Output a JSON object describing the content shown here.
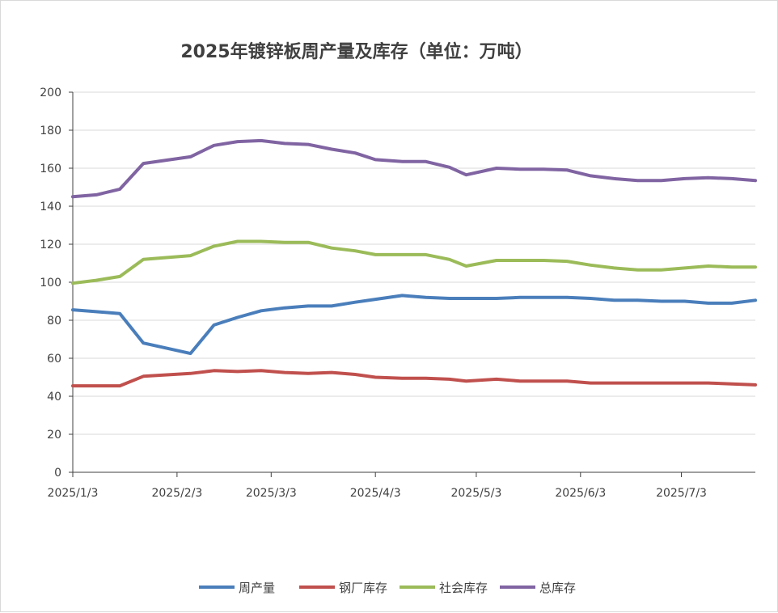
{
  "chart_data": {
    "type": "line",
    "title": "2025年镀锌板周产量及库存（单位：万吨）",
    "xlabel": "",
    "ylabel": "",
    "ylim": [
      0,
      200
    ],
    "yticks": [
      "0",
      "20",
      "40",
      "60",
      "80",
      "100",
      "120",
      "140",
      "160",
      "180",
      "200"
    ],
    "xticks": [
      "2025/1/3",
      "2025/2/3",
      "2025/3/3",
      "2025/4/3",
      "2025/5/3",
      "2025/6/3",
      "2025/7/3"
    ],
    "grid": "horizontal",
    "legend_position": "bottom",
    "x": [
      "2025/1/3",
      "2025/1/10",
      "2025/1/17",
      "2025/1/24",
      "2025/2/7",
      "2025/2/14",
      "2025/2/21",
      "2025/2/28",
      "2025/3/7",
      "2025/3/14",
      "2025/3/21",
      "2025/3/28",
      "2025/4/3",
      "2025/4/11",
      "2025/4/18",
      "2025/4/25",
      "2025/4/30",
      "2025/5/9",
      "2025/5/16",
      "2025/5/23",
      "2025/5/30",
      "2025/6/6",
      "2025/6/13",
      "2025/6/20",
      "2025/6/27",
      "2025/7/4",
      "2025/7/11",
      "2025/7/18",
      "2025/7/25"
    ],
    "series": [
      {
        "name": "周产量",
        "color": "#4a7ebb",
        "values": [
          85.5,
          84.5,
          83.5,
          68,
          62.5,
          77.5,
          81.5,
          85,
          86.5,
          87.5,
          87.5,
          89.5,
          91,
          93,
          92,
          91.5,
          91.5,
          91.5,
          92,
          92,
          92,
          91.5,
          90.5,
          90.5,
          90,
          90,
          89,
          89,
          90.5
        ]
      },
      {
        "name": "钢厂库存",
        "color": "#c0504d",
        "values": [
          45.5,
          45.5,
          45.5,
          50.5,
          52,
          53.5,
          53,
          53.5,
          52.5,
          52,
          52.5,
          51.5,
          50,
          49.5,
          49.5,
          49,
          48,
          49,
          48,
          48,
          48,
          47,
          47,
          47,
          47,
          47,
          47,
          46.5,
          46
        ]
      },
      {
        "name": "社会库存",
        "color": "#9bbb59",
        "values": [
          99.5,
          101,
          103,
          112,
          114,
          119,
          121.5,
          121.5,
          121,
          121,
          118,
          116.5,
          114.5,
          114.5,
          114.5,
          112,
          108.5,
          111.5,
          111.5,
          111.5,
          111,
          109,
          107.5,
          106.5,
          106.5,
          107.5,
          108.5,
          108,
          108
        ]
      },
      {
        "name": "总库存",
        "color": "#8064a2",
        "values": [
          145,
          146,
          149,
          162.5,
          166,
          172,
          174,
          174.5,
          173,
          172.5,
          170,
          168,
          164.5,
          163.5,
          163.5,
          160.5,
          156.5,
          160,
          159.5,
          159.5,
          159,
          156,
          154.5,
          153.5,
          153.5,
          154.5,
          155,
          154.5,
          153.5
        ]
      }
    ]
  }
}
